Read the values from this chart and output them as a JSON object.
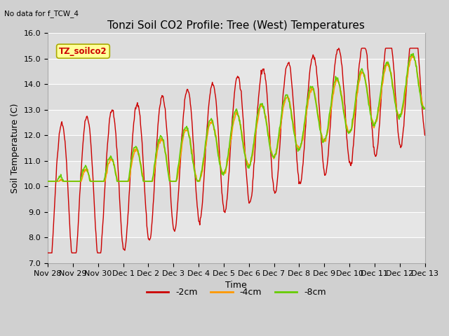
{
  "title": "Tonzi Soil CO2 Profile: Tree (West) Temperatures",
  "subtitle": "No data for f_TCW_4",
  "xlabel": "Time",
  "ylabel": "Soil Temperature (C)",
  "ylim": [
    7.0,
    16.0
  ],
  "yticks": [
    7.0,
    8.0,
    9.0,
    10.0,
    11.0,
    12.0,
    13.0,
    14.0,
    15.0,
    16.0
  ],
  "legend_label": "TZ_soilco2",
  "line_colors": {
    "2cm": "#cc0000",
    "4cm": "#ff9900",
    "8cm": "#66cc00"
  },
  "legend_items": [
    "-2cm",
    "-4cm",
    "-8cm"
  ],
  "xtick_labels": [
    "Nov 28",
    "Nov 29",
    "Nov 30",
    "Dec 1",
    "Dec 2",
    "Dec 3",
    "Dec 4",
    "Dec 5",
    "Dec 6",
    "Dec 7",
    "Dec 8",
    "Dec 9",
    "Dec 10",
    "Dec 11",
    "Dec 12",
    "Dec 13"
  ],
  "title_fontsize": 11,
  "axis_label_fontsize": 9,
  "tick_fontsize": 8
}
